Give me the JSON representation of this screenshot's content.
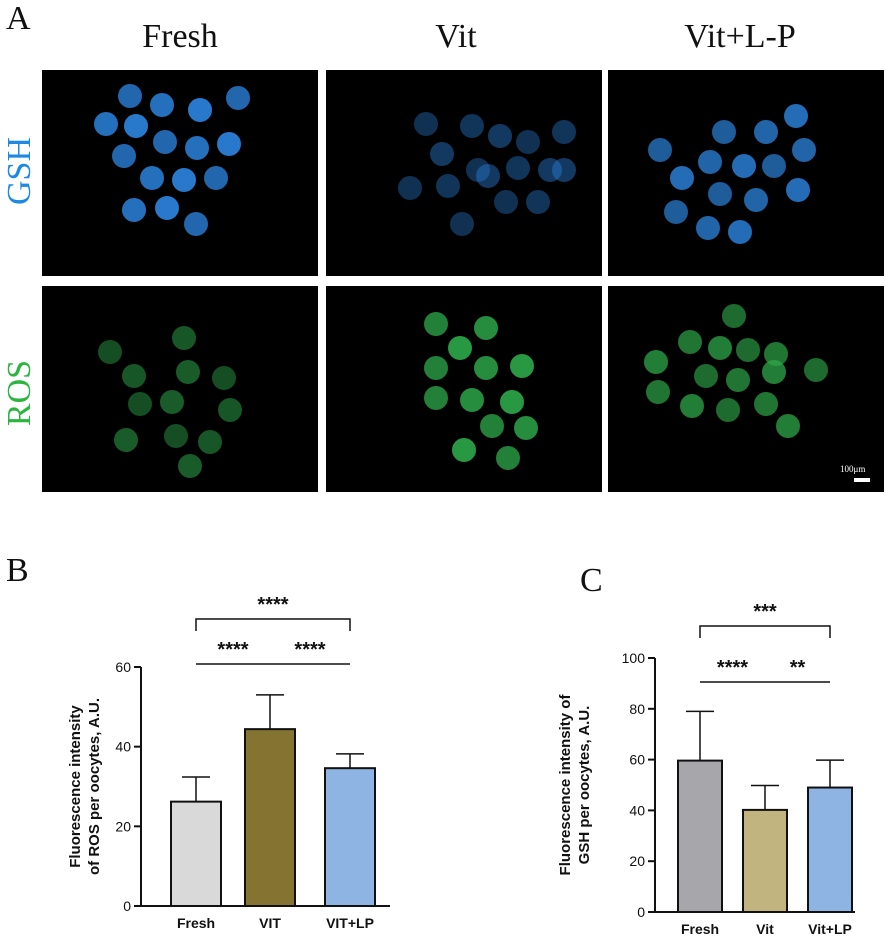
{
  "panels": {
    "a_letter": "A",
    "b_letter": "B",
    "c_letter": "C"
  },
  "micrographs": {
    "columns": [
      "Fresh",
      "Vit",
      "Vit+L-P"
    ],
    "rows": [
      {
        "label": "GSH",
        "color": "#1e88e5",
        "stain": "#2a7fd6"
      },
      {
        "label": "ROS",
        "color": "#2cb53e",
        "stain": "#2ea84a"
      }
    ],
    "scale_bar": "100μm"
  },
  "chart_data": [
    {
      "type": "bar",
      "categories": [
        "Fresh",
        "VIT",
        "VIT+LP"
      ],
      "values": [
        26.2,
        44.4,
        34.6
      ],
      "errors": [
        6.2,
        8.6,
        3.6
      ],
      "colors": [
        "#d9d9d9",
        "#857332",
        "#8db4e2"
      ],
      "ylabel_line1": "Fluorescence intensity",
      "ylabel_line2": "of ROS per oocytes, A.U.",
      "ylim": [
        0,
        60
      ],
      "yticks": [
        0,
        20,
        40,
        60
      ],
      "significance": [
        {
          "from": 0,
          "to": 2,
          "label": "****",
          "level": 2
        },
        {
          "from": 0,
          "to": 1,
          "label": "****",
          "level": 1
        },
        {
          "from": 1,
          "to": 2,
          "label": "****",
          "level": 1
        }
      ]
    },
    {
      "type": "bar",
      "categories": [
        "Fresh",
        "Vit",
        "Vit+LP"
      ],
      "values": [
        59.6,
        40.2,
        49
      ],
      "errors": [
        19.4,
        9.6,
        10.8
      ],
      "colors": [
        "#a6a6ab",
        "#c2b47e",
        "#8db4e2"
      ],
      "ylabel_line1": "Fluorescence intensity of",
      "ylabel_line2": "GSH per oocytes, A.U.",
      "ylim": [
        0,
        100
      ],
      "yticks": [
        0,
        20,
        40,
        60,
        80,
        100
      ],
      "significance": [
        {
          "from": 0,
          "to": 2,
          "label": "***",
          "level": 2
        },
        {
          "from": 0,
          "to": 1,
          "label": "****",
          "level": 1
        },
        {
          "from": 1,
          "to": 2,
          "label": "**",
          "level": 1
        }
      ]
    }
  ]
}
